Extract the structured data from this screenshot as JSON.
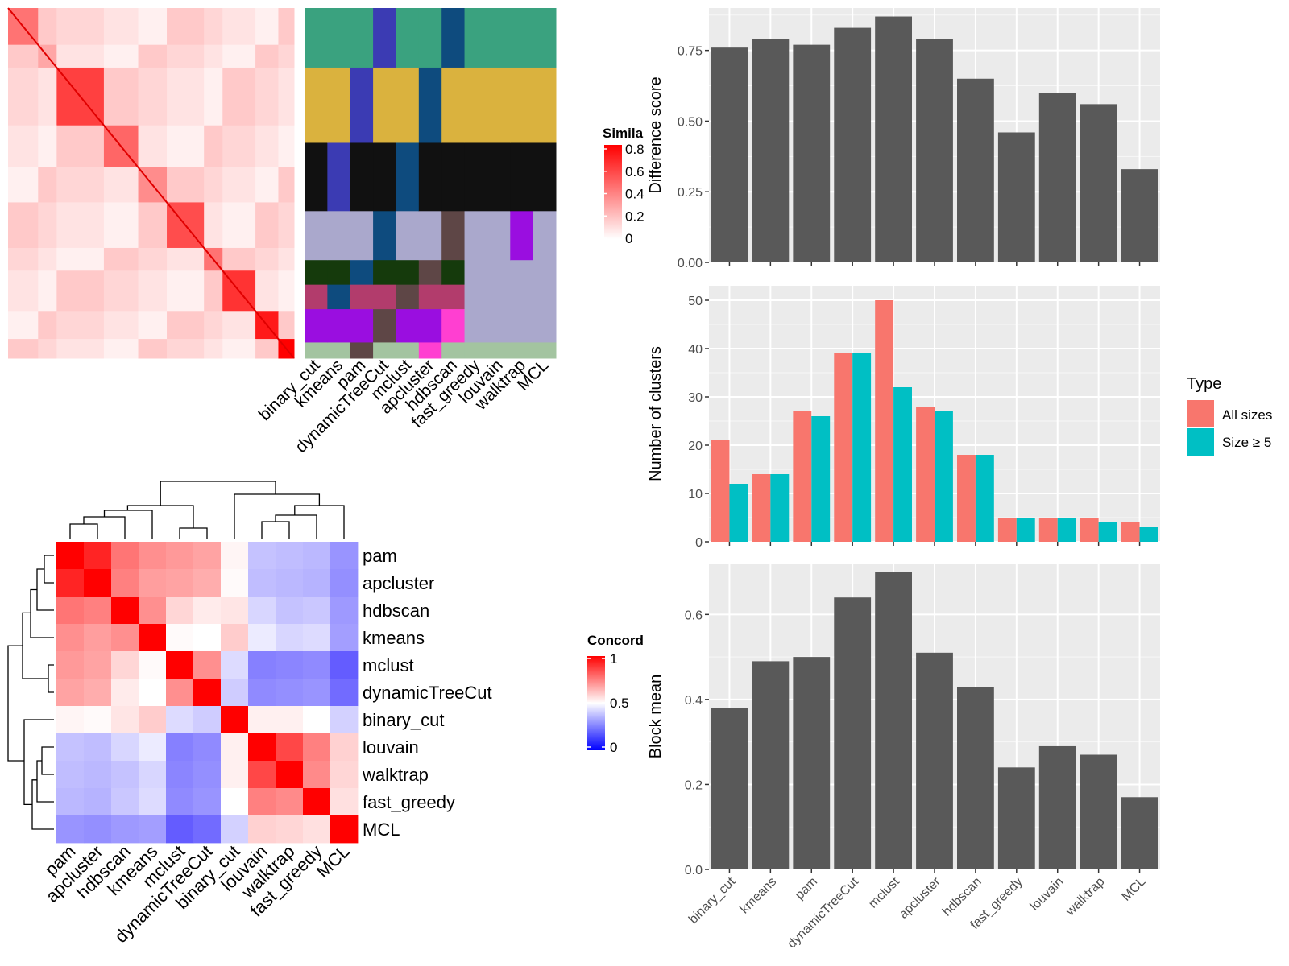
{
  "methods": [
    "binary_cut",
    "kmeans",
    "pam",
    "dynamicTreeCut",
    "mclust",
    "apcluster",
    "hdbscan",
    "fast_greedy",
    "louvain",
    "walktrap",
    "MCL"
  ],
  "heatmap_legend": {
    "title": "Simila",
    "ticks": [
      "0.8",
      "0.6",
      "0.4",
      "0.2",
      "0"
    ],
    "colors": {
      "high": "#ff0000",
      "low": "#ffffff"
    }
  },
  "concordance": {
    "legend_title": "Concord",
    "legend_ticks": [
      "1",
      "0.5",
      "0"
    ],
    "colors": {
      "high": "#ff0000",
      "mid": "#ffffff",
      "low": "#0000ff"
    },
    "order": [
      "pam",
      "apcluster",
      "hdbscan",
      "kmeans",
      "mclust",
      "dynamicTreeCut",
      "binary_cut",
      "louvain",
      "walktrap",
      "fast_greedy",
      "MCL"
    ],
    "matrix": [
      [
        1.0,
        0.93,
        0.77,
        0.72,
        0.7,
        0.68,
        0.52,
        0.38,
        0.37,
        0.36,
        0.29
      ],
      [
        0.93,
        1.0,
        0.75,
        0.69,
        0.68,
        0.66,
        0.51,
        0.37,
        0.36,
        0.35,
        0.28
      ],
      [
        0.77,
        0.75,
        1.0,
        0.72,
        0.58,
        0.54,
        0.55,
        0.42,
        0.38,
        0.39,
        0.3
      ],
      [
        0.72,
        0.69,
        0.72,
        1.0,
        0.51,
        0.5,
        0.6,
        0.46,
        0.42,
        0.43,
        0.31
      ],
      [
        0.7,
        0.68,
        0.58,
        0.51,
        1.0,
        0.72,
        0.43,
        0.25,
        0.26,
        0.27,
        0.18
      ],
      [
        0.68,
        0.66,
        0.54,
        0.5,
        0.72,
        1.0,
        0.4,
        0.27,
        0.28,
        0.29,
        0.21
      ],
      [
        0.52,
        0.51,
        0.55,
        0.6,
        0.43,
        0.4,
        1.0,
        0.53,
        0.53,
        0.5,
        0.41
      ],
      [
        0.38,
        0.37,
        0.42,
        0.46,
        0.25,
        0.27,
        0.53,
        1.0,
        0.86,
        0.75,
        0.59
      ],
      [
        0.37,
        0.36,
        0.38,
        0.42,
        0.26,
        0.28,
        0.53,
        0.86,
        1.0,
        0.73,
        0.58
      ],
      [
        0.36,
        0.35,
        0.39,
        0.43,
        0.27,
        0.29,
        0.5,
        0.75,
        0.73,
        1.0,
        0.56
      ],
      [
        0.29,
        0.28,
        0.3,
        0.31,
        0.18,
        0.21,
        0.41,
        0.59,
        0.58,
        0.56,
        1.0
      ]
    ]
  },
  "chart_data": [
    {
      "type": "bar",
      "ylabel": "Difference score",
      "categories": [
        "binary_cut",
        "kmeans",
        "pam",
        "dynamicTreeCut",
        "mclust",
        "apcluster",
        "hdbscan",
        "fast_greedy",
        "louvain",
        "walktrap",
        "MCL"
      ],
      "values": [
        0.76,
        0.79,
        0.77,
        0.83,
        0.87,
        0.79,
        0.65,
        0.46,
        0.6,
        0.56,
        0.33
      ],
      "ylim": [
        0,
        0.9
      ],
      "yticks": [
        "0.00",
        "0.25",
        "0.50",
        "0.75"
      ],
      "grid": true,
      "color": "#595959"
    },
    {
      "type": "bar",
      "ylabel": "Number of clusters",
      "categories": [
        "binary_cut",
        "kmeans",
        "pam",
        "dynamicTreeCut",
        "mclust",
        "apcluster",
        "hdbscan",
        "fast_greedy",
        "louvain",
        "walktrap",
        "MCL"
      ],
      "series": [
        {
          "name": "All sizes",
          "values": [
            21,
            14,
            27,
            39,
            50,
            28,
            18,
            5,
            5,
            5,
            4
          ],
          "color": "#f8766d"
        },
        {
          "name": "Size ≥ 5",
          "values": [
            12,
            14,
            26,
            39,
            32,
            27,
            18,
            5,
            5,
            4,
            3
          ],
          "color": "#00bfc4"
        }
      ],
      "ylim": [
        0,
        53
      ],
      "yticks": [
        "0",
        "10",
        "20",
        "30",
        "40",
        "50"
      ],
      "legend_title": "Type",
      "legend_position": "right",
      "grid": true
    },
    {
      "type": "bar",
      "ylabel": "Block mean",
      "categories": [
        "binary_cut",
        "kmeans",
        "pam",
        "dynamicTreeCut",
        "mclust",
        "apcluster",
        "hdbscan",
        "fast_greedy",
        "louvain",
        "walktrap",
        "MCL"
      ],
      "values": [
        0.38,
        0.49,
        0.5,
        0.64,
        0.7,
        0.51,
        0.43,
        0.24,
        0.29,
        0.27,
        0.17
      ],
      "ylim": [
        0,
        0.72
      ],
      "yticks": [
        "0.0",
        "0.2",
        "0.4",
        "0.6"
      ],
      "grid": true,
      "color": "#595959"
    }
  ]
}
